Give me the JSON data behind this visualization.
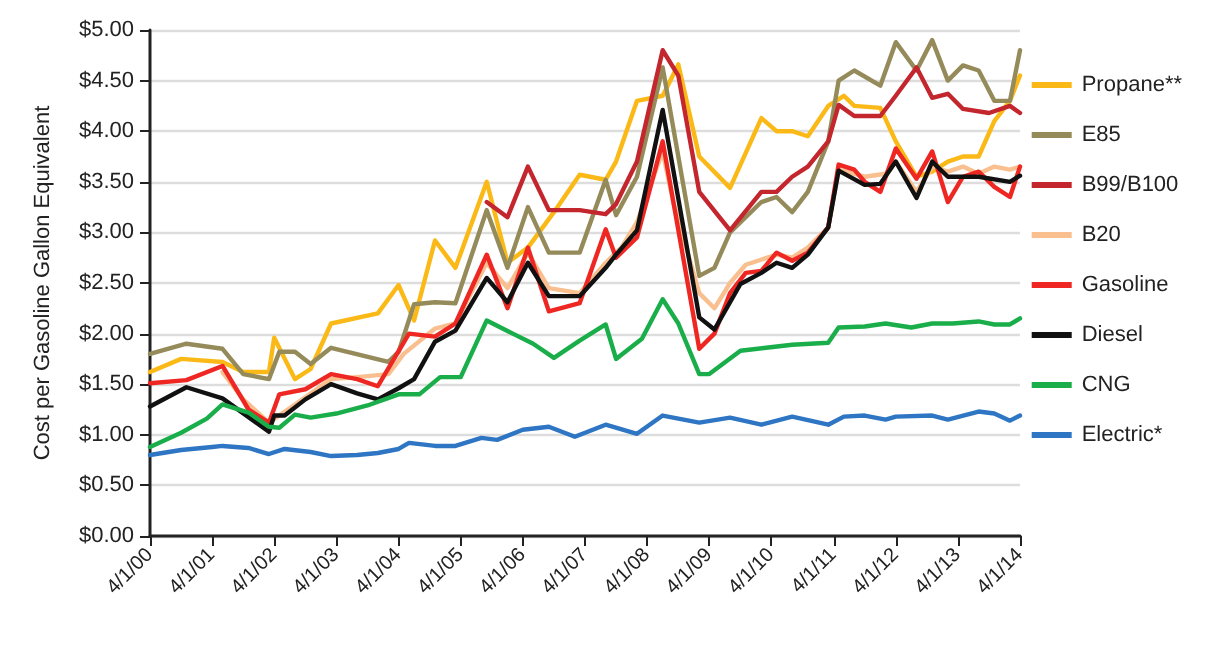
{
  "chart_data": {
    "type": "line",
    "ylabel": "Cost per Gasoline Gallon Equivalent",
    "xlim": [
      "2000-04-01",
      "2014-04-01"
    ],
    "xticks": [
      {
        "value": "2000-04-01",
        "label": "4/1/00"
      },
      {
        "value": "2001-04-01",
        "label": "4/1/01"
      },
      {
        "value": "2002-04-01",
        "label": "4/1/02"
      },
      {
        "value": "2003-04-01",
        "label": "4/1/03"
      },
      {
        "value": "2004-04-01",
        "label": "4/1/04"
      },
      {
        "value": "2005-04-01",
        "label": "4/1/05"
      },
      {
        "value": "2006-04-01",
        "label": "4/1/06"
      },
      {
        "value": "2007-04-01",
        "label": "4/1/07"
      },
      {
        "value": "2008-04-01",
        "label": "4/1/08"
      },
      {
        "value": "2009-04-01",
        "label": "4/1/09"
      },
      {
        "value": "2010-04-01",
        "label": "4/1/10"
      },
      {
        "value": "2011-04-01",
        "label": "4/1/11"
      },
      {
        "value": "2012-04-01",
        "label": "4/1/12"
      },
      {
        "value": "2013-04-01",
        "label": "4/1/13"
      },
      {
        "value": "2014-04-01",
        "label": "4/1/14"
      }
    ],
    "ylim": [
      0,
      5
    ],
    "yticks": [
      {
        "value": 0,
        "label": "$0.00"
      },
      {
        "value": 0.5,
        "label": "$0.50"
      },
      {
        "value": 1,
        "label": "$1.00"
      },
      {
        "value": 1.5,
        "label": "$1.50"
      },
      {
        "value": 2,
        "label": "$2.00"
      },
      {
        "value": 2.5,
        "label": "$2.50"
      },
      {
        "value": 3,
        "label": "$3.00"
      },
      {
        "value": 3.5,
        "label": "$3.50"
      },
      {
        "value": 4,
        "label": "$4.00"
      },
      {
        "value": 4.5,
        "label": "$4.50"
      },
      {
        "value": 5,
        "label": "$5.00"
      }
    ],
    "grid": "y",
    "legend": "right",
    "marker": "none",
    "line_style": "solid",
    "series": [
      {
        "name": "Propane**",
        "color": "#fbb917",
        "x": [
          "2000-04",
          "2000-10",
          "2001-06",
          "2001-10",
          "2002-03",
          "2002-04",
          "2002-08",
          "2002-11",
          "2003-03",
          "2003-12",
          "2004-04",
          "2004-07",
          "2004-11",
          "2005-03",
          "2005-09",
          "2006-01",
          "2006-05",
          "2006-10",
          "2007-03",
          "2007-08",
          "2007-10",
          "2008-02",
          "2008-07",
          "2008-10",
          "2009-02",
          "2009-08",
          "2010-02",
          "2010-05",
          "2010-08",
          "2010-11",
          "2011-03",
          "2011-06",
          "2011-08",
          "2012-01",
          "2012-04",
          "2012-08",
          "2012-11",
          "2013-02",
          "2013-05",
          "2013-08",
          "2013-11",
          "2014-02",
          "2014-04"
        ],
        "values": [
          1.62,
          1.75,
          1.72,
          1.62,
          1.62,
          1.96,
          1.55,
          1.65,
          2.1,
          2.2,
          2.48,
          2.13,
          2.92,
          2.65,
          3.5,
          2.7,
          2.85,
          3.2,
          3.57,
          3.52,
          3.7,
          4.3,
          4.35,
          4.66,
          3.75,
          3.44,
          4.13,
          4.0,
          4.0,
          3.95,
          4.25,
          4.35,
          4.25,
          4.23,
          3.9,
          3.55,
          3.6,
          3.7,
          3.75,
          3.75,
          4.1,
          4.3,
          4.55
        ]
      },
      {
        "name": "E85",
        "color": "#958b5a",
        "x": [
          "2000-04",
          "2000-11",
          "2001-06",
          "2001-10",
          "2002-03",
          "2002-05",
          "2002-08",
          "2002-11",
          "2003-03",
          "2004-02",
          "2004-04",
          "2004-07",
          "2004-11",
          "2005-03",
          "2005-09",
          "2006-01",
          "2006-05",
          "2006-09",
          "2007-03",
          "2007-08",
          "2007-10",
          "2008-02",
          "2008-07",
          "2009-02",
          "2009-05",
          "2009-08",
          "2010-02",
          "2010-05",
          "2010-08",
          "2010-11",
          "2011-03",
          "2011-05",
          "2011-08",
          "2012-01",
          "2012-04",
          "2012-08",
          "2012-11",
          "2013-02",
          "2013-05",
          "2013-08",
          "2013-11",
          "2014-02",
          "2014-04"
        ],
        "values": [
          1.8,
          1.9,
          1.85,
          1.6,
          1.55,
          1.82,
          1.82,
          1.7,
          1.86,
          1.72,
          1.82,
          2.29,
          2.31,
          2.3,
          3.22,
          2.65,
          3.25,
          2.8,
          2.8,
          3.52,
          3.17,
          3.55,
          4.63,
          2.57,
          2.65,
          3.0,
          3.3,
          3.35,
          3.2,
          3.4,
          3.9,
          4.5,
          4.6,
          4.45,
          4.88,
          4.6,
          4.9,
          4.5,
          4.65,
          4.6,
          4.3,
          4.3,
          4.8
        ]
      },
      {
        "name": "B99/B100",
        "color": "#c4262e",
        "x": [
          "2005-09",
          "2006-01",
          "2006-05",
          "2006-09",
          "2007-03",
          "2007-08",
          "2007-10",
          "2008-02",
          "2008-07",
          "2008-10",
          "2009-02",
          "2009-08",
          "2010-02",
          "2010-05",
          "2010-08",
          "2010-11",
          "2011-03",
          "2011-05",
          "2011-08",
          "2012-01",
          "2012-04",
          "2012-08",
          "2012-11",
          "2013-02",
          "2013-05",
          "2013-10",
          "2014-02",
          "2014-04"
        ],
        "values": [
          3.3,
          3.15,
          3.65,
          3.22,
          3.22,
          3.18,
          3.28,
          3.7,
          4.8,
          4.55,
          3.4,
          3.02,
          3.4,
          3.4,
          3.55,
          3.65,
          3.9,
          4.26,
          4.15,
          4.15,
          4.35,
          4.63,
          4.33,
          4.37,
          4.22,
          4.18,
          4.25,
          4.18
        ]
      },
      {
        "name": "B20",
        "color": "#f9bf8f",
        "x": [
          "2001-06",
          "2001-10",
          "2002-03",
          "2002-08",
          "2003-03",
          "2003-08",
          "2004-02",
          "2004-05",
          "2004-11",
          "2005-03",
          "2005-09",
          "2006-01",
          "2006-05",
          "2006-09",
          "2007-03",
          "2007-08",
          "2007-11",
          "2008-02",
          "2008-07",
          "2008-09",
          "2009-02",
          "2009-05",
          "2009-08",
          "2009-11",
          "2010-05",
          "2010-08",
          "2010-11",
          "2011-03",
          "2011-05",
          "2011-10",
          "2012-02",
          "2012-04",
          "2012-08",
          "2012-11",
          "2013-02",
          "2013-05",
          "2013-08",
          "2013-11",
          "2014-02",
          "2014-04"
        ],
        "values": [
          1.62,
          1.35,
          1.12,
          1.3,
          1.55,
          1.57,
          1.6,
          1.8,
          2.05,
          2.1,
          2.7,
          2.45,
          2.8,
          2.45,
          2.4,
          2.7,
          2.85,
          3.1,
          3.8,
          3.3,
          2.4,
          2.25,
          2.5,
          2.68,
          2.78,
          2.75,
          2.85,
          3.05,
          3.62,
          3.55,
          3.58,
          3.7,
          3.4,
          3.65,
          3.6,
          3.65,
          3.58,
          3.65,
          3.62,
          3.65
        ]
      },
      {
        "name": "Gasoline",
        "color": "#ee2722",
        "x": [
          "2000-04",
          "2000-11",
          "2001-06",
          "2001-11",
          "2002-03",
          "2002-05",
          "2002-10",
          "2003-03",
          "2003-08",
          "2003-12",
          "2004-06",
          "2004-11",
          "2005-03",
          "2005-09",
          "2006-01",
          "2006-05",
          "2006-09",
          "2007-03",
          "2007-08",
          "2007-10",
          "2008-02",
          "2008-07",
          "2009-02",
          "2009-05",
          "2009-08",
          "2009-11",
          "2010-02",
          "2010-05",
          "2010-08",
          "2010-11",
          "2011-03",
          "2011-05",
          "2011-08",
          "2011-10",
          "2012-01",
          "2012-04",
          "2012-08",
          "2012-11",
          "2013-02",
          "2013-05",
          "2013-08",
          "2013-11",
          "2014-02",
          "2014-04"
        ],
        "values": [
          1.51,
          1.54,
          1.68,
          1.25,
          1.12,
          1.4,
          1.45,
          1.6,
          1.55,
          1.48,
          2.0,
          1.97,
          2.1,
          2.78,
          2.25,
          2.85,
          2.22,
          2.3,
          3.03,
          2.75,
          2.95,
          3.9,
          1.85,
          2.0,
          2.4,
          2.6,
          2.62,
          2.8,
          2.72,
          2.8,
          3.05,
          3.67,
          3.62,
          3.5,
          3.4,
          3.83,
          3.53,
          3.8,
          3.3,
          3.55,
          3.6,
          3.45,
          3.35,
          3.65
        ]
      },
      {
        "name": "Diesel",
        "color": "#111111",
        "x": [
          "2000-04",
          "2000-11",
          "2001-06",
          "2002-03",
          "2002-04",
          "2002-06",
          "2002-10",
          "2003-03",
          "2003-08",
          "2003-12",
          "2004-04",
          "2004-07",
          "2004-11",
          "2005-03",
          "2005-09",
          "2006-01",
          "2006-05",
          "2006-09",
          "2007-03",
          "2007-08",
          "2007-10",
          "2008-02",
          "2008-07",
          "2009-02",
          "2009-05",
          "2009-10",
          "2010-02",
          "2010-05",
          "2010-08",
          "2010-11",
          "2011-03",
          "2011-05",
          "2011-10",
          "2012-01",
          "2012-04",
          "2012-08",
          "2012-11",
          "2013-02",
          "2013-08",
          "2014-02",
          "2014-04"
        ],
        "values": [
          1.28,
          1.47,
          1.36,
          1.03,
          1.19,
          1.19,
          1.35,
          1.5,
          1.41,
          1.35,
          1.46,
          1.55,
          1.92,
          2.03,
          2.55,
          2.31,
          2.7,
          2.37,
          2.37,
          2.65,
          2.78,
          3.02,
          4.21,
          2.16,
          2.04,
          2.49,
          2.6,
          2.7,
          2.65,
          2.78,
          3.05,
          3.61,
          3.47,
          3.48,
          3.7,
          3.34,
          3.7,
          3.55,
          3.55,
          3.5,
          3.56
        ]
      },
      {
        "name": "CNG",
        "color": "#1aae4a",
        "x": [
          "2000-04",
          "2000-10",
          "2001-03",
          "2001-06",
          "2001-11",
          "2002-03",
          "2002-05",
          "2002-08",
          "2002-11",
          "2003-04",
          "2003-10",
          "2004-04",
          "2004-08",
          "2004-12",
          "2005-04",
          "2005-09",
          "2006-02",
          "2006-06",
          "2006-10",
          "2007-03",
          "2007-08",
          "2007-10",
          "2008-03",
          "2008-07",
          "2008-10",
          "2009-02",
          "2009-04",
          "2009-10",
          "2010-03",
          "2010-08",
          "2011-03",
          "2011-05",
          "2011-10",
          "2012-02",
          "2012-07",
          "2012-11",
          "2013-03",
          "2013-08",
          "2013-11",
          "2014-02",
          "2014-04"
        ],
        "values": [
          0.88,
          1.02,
          1.16,
          1.3,
          1.22,
          1.08,
          1.07,
          1.2,
          1.17,
          1.21,
          1.29,
          1.4,
          1.4,
          1.57,
          1.57,
          2.13,
          2.0,
          1.9,
          1.76,
          1.93,
          2.09,
          1.75,
          1.95,
          2.34,
          2.1,
          1.6,
          1.6,
          1.83,
          1.86,
          1.89,
          1.91,
          2.06,
          2.07,
          2.1,
          2.06,
          2.1,
          2.1,
          2.12,
          2.09,
          2.09,
          2.15
        ]
      },
      {
        "name": "Electric*",
        "color": "#2e75c4",
        "x": [
          "2000-04",
          "2000-10",
          "2001-04",
          "2001-06",
          "2001-11",
          "2002-03",
          "2002-06",
          "2002-11",
          "2003-03",
          "2003-08",
          "2003-12",
          "2004-04",
          "2004-06",
          "2004-11",
          "2005-03",
          "2005-08",
          "2005-11",
          "2006-04",
          "2006-09",
          "2007-02",
          "2007-08",
          "2008-02",
          "2008-07",
          "2009-02",
          "2009-08",
          "2010-02",
          "2010-08",
          "2011-03",
          "2011-06",
          "2011-10",
          "2012-02",
          "2012-04",
          "2012-11",
          "2013-02",
          "2013-08",
          "2013-11",
          "2014-02",
          "2014-04"
        ],
        "values": [
          0.8,
          0.85,
          0.88,
          0.89,
          0.87,
          0.81,
          0.86,
          0.83,
          0.79,
          0.8,
          0.82,
          0.86,
          0.92,
          0.89,
          0.89,
          0.97,
          0.95,
          1.05,
          1.08,
          0.98,
          1.1,
          1.01,
          1.19,
          1.12,
          1.17,
          1.1,
          1.18,
          1.1,
          1.18,
          1.19,
          1.15,
          1.18,
          1.19,
          1.15,
          1.23,
          1.21,
          1.14,
          1.19
        ]
      }
    ]
  }
}
